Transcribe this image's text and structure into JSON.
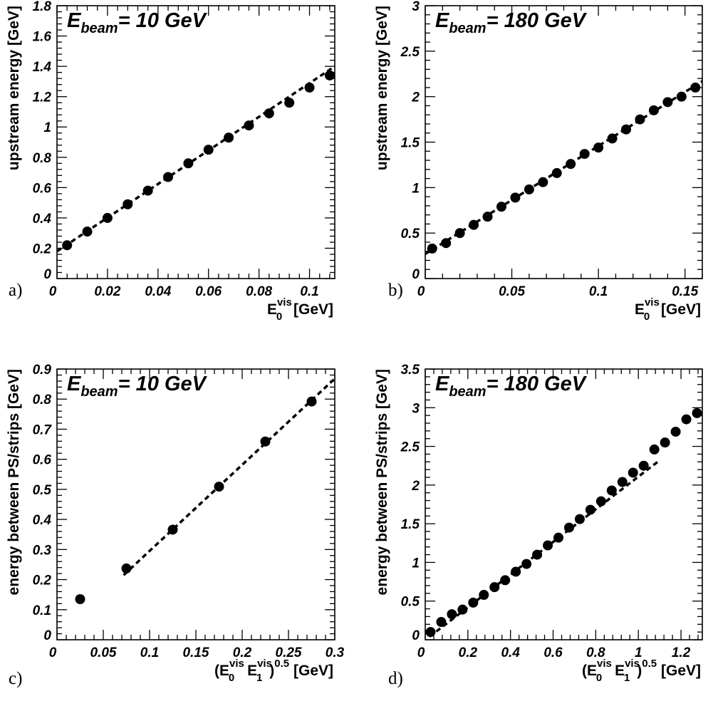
{
  "chart_data": [
    {
      "type": "scatter",
      "panel_letter": "a)",
      "beam_label": {
        "main": "E",
        "sub": "beam",
        "rest": "=  10 GeV"
      },
      "xlabel": {
        "main": "E",
        "sub": "0",
        "sup": "vis",
        "rest": " [GeV]"
      },
      "ylabel": "upstream energy [GeV]",
      "xlim": [
        0,
        0.11
      ],
      "ylim": [
        0,
        1.8
      ],
      "xticks": [
        0,
        0.02,
        0.04,
        0.06,
        0.08,
        0.1
      ],
      "xtick_labels": [
        "0",
        "0.02",
        "0.04",
        "0.06",
        "0.08",
        "0.1"
      ],
      "yticks": [
        0,
        0.2,
        0.4,
        0.6,
        0.8,
        1,
        1.2,
        1.4,
        1.6,
        1.8
      ],
      "ytick_labels": [
        "0",
        "0.2",
        "0.4",
        "0.6",
        "0.8",
        "1",
        "1.2",
        "1.4",
        "1.6",
        "1.8"
      ],
      "grid": false,
      "series": [
        {
          "kind": "points",
          "x": [
            0.004,
            0.012,
            0.02,
            0.028,
            0.036,
            0.044,
            0.052,
            0.06,
            0.068,
            0.076,
            0.084,
            0.092,
            0.1,
            0.108
          ],
          "y": [
            0.22,
            0.31,
            0.4,
            0.49,
            0.58,
            0.67,
            0.76,
            0.85,
            0.93,
            1.01,
            1.09,
            1.16,
            1.26,
            1.34
          ]
        },
        {
          "kind": "dashed-fit",
          "x": [
            0,
            0.11
          ],
          "y": [
            0.18,
            1.4
          ]
        }
      ]
    },
    {
      "type": "scatter",
      "panel_letter": "b)",
      "beam_label": {
        "main": "E",
        "sub": "beam",
        "rest": "= 180 GeV"
      },
      "xlabel": {
        "main": "E",
        "sub": "0",
        "sup": "vis",
        "rest": " [GeV]"
      },
      "ylabel": "upstream energy [GeV]",
      "xlim": [
        0,
        0.16
      ],
      "ylim": [
        0,
        3
      ],
      "xticks": [
        0,
        0.05,
        0.1,
        0.15
      ],
      "xtick_labels": [
        "0",
        "0.05",
        "0.1",
        "0.15"
      ],
      "yticks": [
        0,
        0.5,
        1,
        1.5,
        2,
        2.5,
        3
      ],
      "ytick_labels": [
        "0",
        "0.5",
        "1",
        "1.5",
        "2",
        "2.5",
        "3"
      ],
      "grid": false,
      "series": [
        {
          "kind": "points",
          "x": [
            0.004,
            0.012,
            0.02,
            0.028,
            0.036,
            0.044,
            0.052,
            0.06,
            0.068,
            0.076,
            0.084,
            0.092,
            0.1,
            0.108,
            0.116,
            0.124,
            0.132,
            0.14,
            0.148,
            0.156
          ],
          "y": [
            0.33,
            0.39,
            0.5,
            0.59,
            0.68,
            0.79,
            0.89,
            0.98,
            1.06,
            1.16,
            1.26,
            1.37,
            1.44,
            1.54,
            1.64,
            1.75,
            1.85,
            1.94,
            2.0,
            2.1
          ]
        },
        {
          "kind": "dashed-fit",
          "x": [
            0,
            0.16
          ],
          "y": [
            0.27,
            2.17
          ]
        }
      ]
    },
    {
      "type": "scatter",
      "panel_letter": "c)",
      "beam_label": {
        "main": "E",
        "sub": "beam",
        "rest": "=  10 GeV"
      },
      "xlabel": {
        "pre": "(E",
        "sub1": "0",
        "sup1": "vis",
        "mid": "  E",
        "sub2": "1",
        "sup2": "vis",
        "close": ")",
        "sup3": "0.5",
        "rest": " [GeV]"
      },
      "ylabel": "energy  between PS/strips [GeV]",
      "xlim": [
        0,
        0.3
      ],
      "ylim": [
        0,
        0.9
      ],
      "xticks": [
        0,
        0.05,
        0.1,
        0.15,
        0.2,
        0.25,
        0.3
      ],
      "xtick_labels": [
        "0",
        "0.05",
        "0.1",
        "0.15",
        "0.2",
        "0.25",
        "0.3"
      ],
      "yticks": [
        0,
        0.1,
        0.2,
        0.3,
        0.4,
        0.5,
        0.6,
        0.7,
        0.8,
        0.9
      ],
      "ytick_labels": [
        "0",
        "0.1",
        "0.2",
        "0.3",
        "0.4",
        "0.5",
        "0.6",
        "0.7",
        "0.8",
        "0.9"
      ],
      "grid": false,
      "series": [
        {
          "kind": "points",
          "x": [
            0.025,
            0.075,
            0.125,
            0.175,
            0.225,
            0.275
          ],
          "y": [
            0.135,
            0.237,
            0.366,
            0.509,
            0.659,
            0.792
          ]
        },
        {
          "kind": "dashed-fit",
          "x": [
            0.072,
            0.3
          ],
          "y": [
            0.215,
            0.868
          ]
        }
      ]
    },
    {
      "type": "scatter",
      "panel_letter": "d)",
      "beam_label": {
        "main": "E",
        "sub": "beam",
        "rest": "= 180 GeV"
      },
      "xlabel": {
        "pre": "(E",
        "sub1": "0",
        "sup1": "vis",
        "mid": " E",
        "sub2": "1",
        "sup2": "vis",
        "close": ")",
        "sup3": "0.5",
        "rest": " [GeV]"
      },
      "ylabel": "energy between PS/strips [GeV]",
      "xlim": [
        0,
        1.3
      ],
      "ylim": [
        0,
        3.5
      ],
      "xticks": [
        0,
        0.2,
        0.4,
        0.6,
        0.8,
        1,
        1.2
      ],
      "xtick_labels": [
        "0",
        "0.2",
        "0.4",
        "0.6",
        "0.8",
        "1",
        "1.2"
      ],
      "yticks": [
        0,
        0.5,
        1,
        1.5,
        2,
        2.5,
        3,
        3.5
      ],
      "ytick_labels": [
        "0",
        "0.5",
        "1",
        "1.5",
        "2",
        "2.5",
        "3",
        "3.5"
      ],
      "grid": false,
      "series": [
        {
          "kind": "points",
          "x": [
            0.025,
            0.075,
            0.125,
            0.175,
            0.225,
            0.275,
            0.325,
            0.375,
            0.425,
            0.475,
            0.525,
            0.575,
            0.625,
            0.675,
            0.725,
            0.775,
            0.825,
            0.875,
            0.925,
            0.975,
            1.025,
            1.075,
            1.125,
            1.175,
            1.225,
            1.275
          ],
          "y": [
            0.1,
            0.23,
            0.33,
            0.39,
            0.48,
            0.58,
            0.68,
            0.77,
            0.88,
            0.98,
            1.1,
            1.22,
            1.32,
            1.45,
            1.56,
            1.68,
            1.79,
            1.93,
            2.04,
            2.16,
            2.25,
            2.46,
            2.55,
            2.69,
            2.85,
            2.93
          ]
        },
        {
          "kind": "dashed-fit",
          "x": [
            0.02,
            1.1
          ],
          "y": [
            0.04,
            2.32
          ]
        }
      ]
    }
  ]
}
